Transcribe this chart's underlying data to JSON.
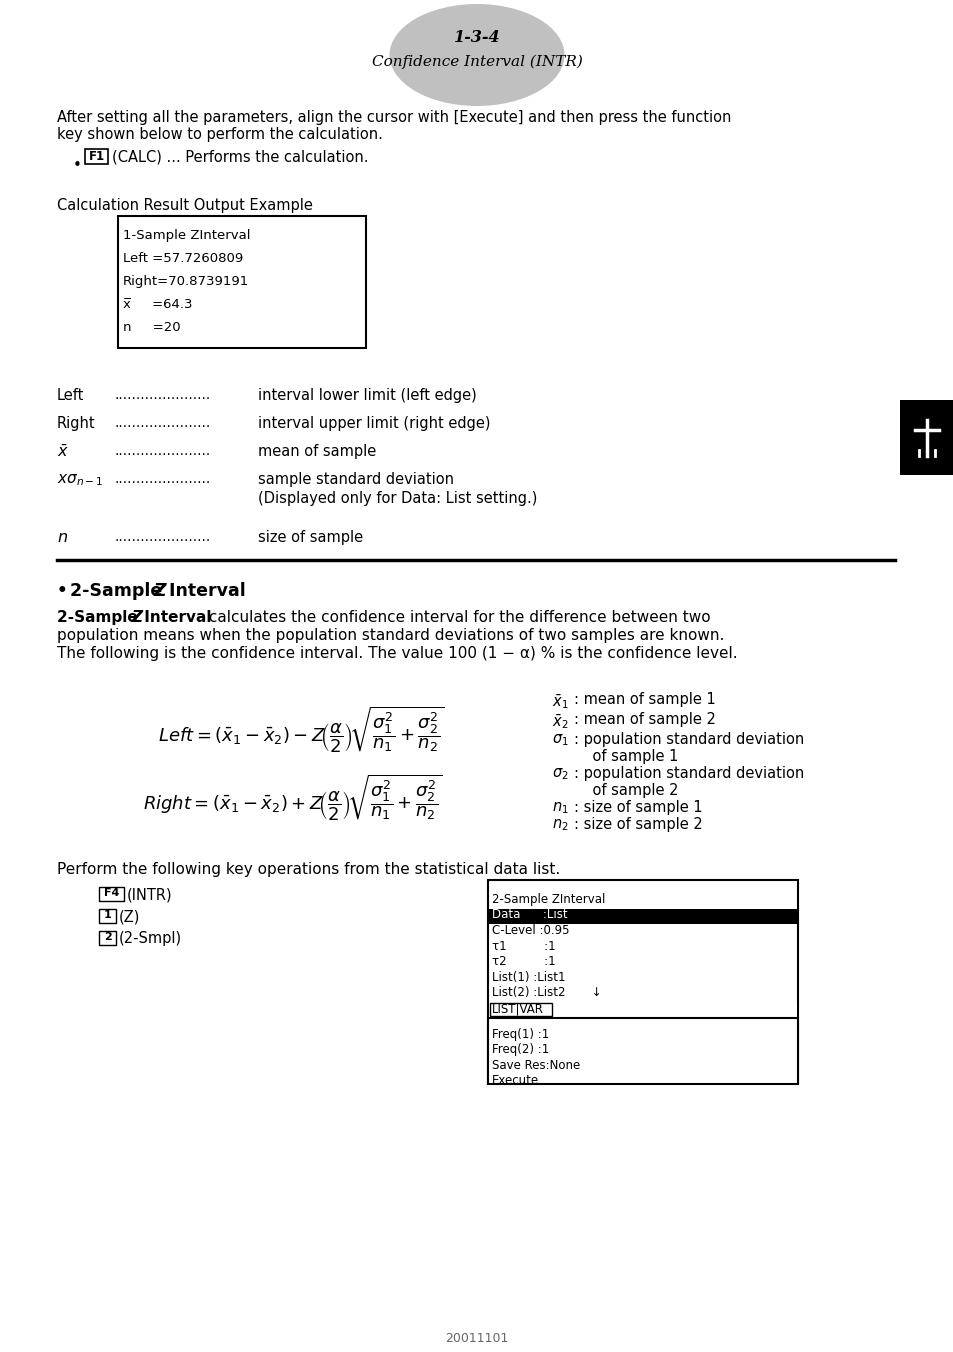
{
  "page_bg": "#ffffff",
  "header_ellipse_color": "#c0c0c0",
  "header_title": "1-3-4",
  "header_subtitle": "Confidence Interval (INTR)",
  "body_text1a": "After setting all the parameters, align the cursor with [Execute] and then press the function",
  "body_text1b": "key shown below to perform the calculation.",
  "f1_label": "(CALC) ... Performs the calculation.",
  "calc_result_label": "Calculation Result Output Example",
  "screen1_lines": [
    "1-Sample ZInterval",
    "Left =57.7260809",
    "Right=70.8739191",
    "x̅     =64.3",
    "n     =20"
  ],
  "section_bullet": "•",
  "intro_line2": "population means when the population standard deviations of two samples are known.",
  "intro_line3": "The following is the confidence interval. The value 100 (1 − α) % is the confidence level.",
  "perform_text": "Perform the following key operations from the statistical data list.",
  "key_ops_boxes": [
    "F4",
    "1",
    "2"
  ],
  "key_ops_labels": [
    "(INTR)",
    "(Z)",
    "(2-Smpl)"
  ],
  "screen2_lines_top": [
    "2-Sample ZInterval",
    "Data      :List",
    "C-Level :0.95",
    "τ1          :1",
    "τ2          :1",
    "List(1) :List1",
    "List(2) :List2       ↓"
  ],
  "screen2_sep": "LIST|VAR",
  "screen2_lines_bot": [
    "Freq(1) :1",
    "Freq(2) :1",
    "Save Res:None",
    "Execute"
  ],
  "footer_text": "20011101"
}
